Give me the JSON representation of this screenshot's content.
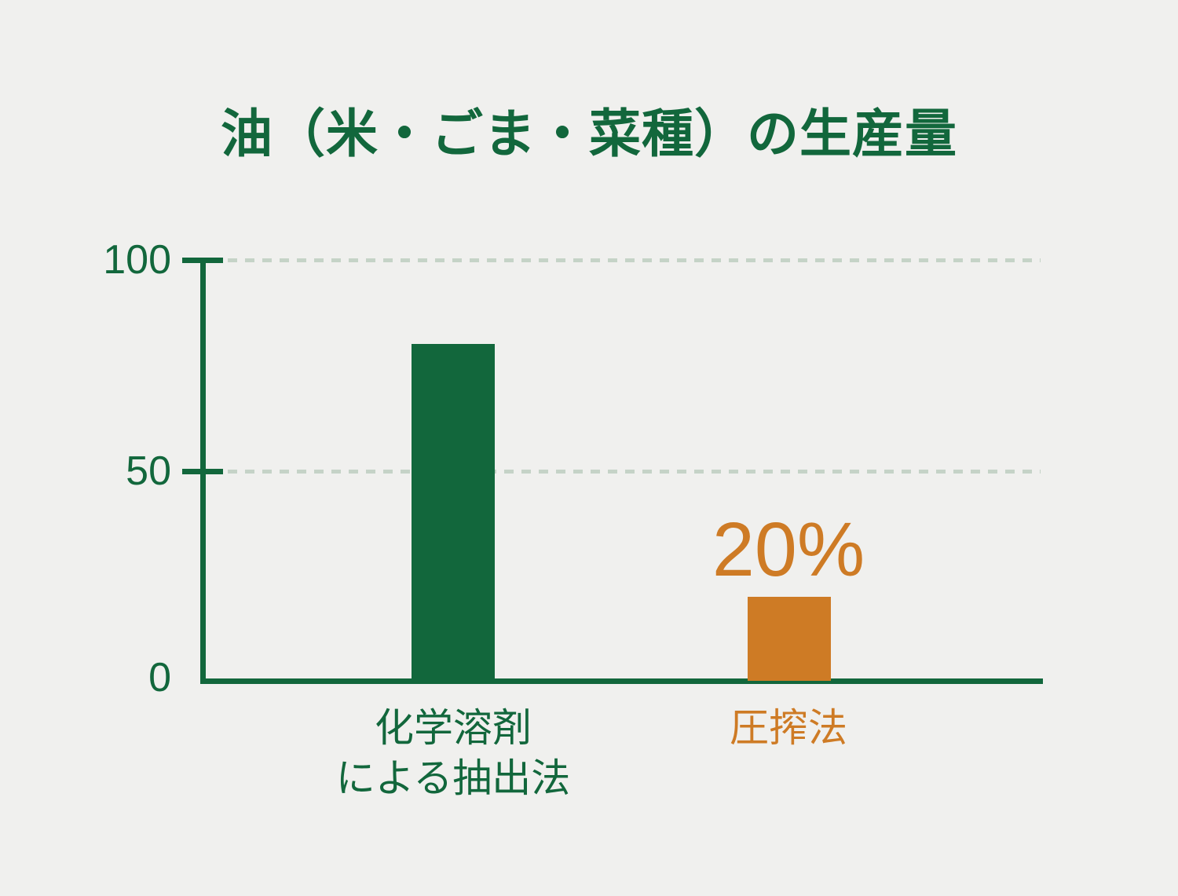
{
  "title": "油（米・ごま・菜種）の生産量",
  "chart_data": {
    "type": "bar",
    "title": "油（米・ごま・菜種）の生産量",
    "categories": [
      "化学溶剤による抽出法",
      "圧搾法"
    ],
    "values": [
      80,
      20
    ],
    "series_colors": [
      "#12673C",
      "#CE7B25"
    ],
    "xlabel": "",
    "ylabel": "",
    "ylim": [
      0,
      100
    ],
    "yticks": [
      0,
      50,
      100
    ],
    "grid": "horizontal dashed lines at 50 and 100",
    "legend_position": "none",
    "annotations": [
      {
        "target": "圧搾法",
        "text": "20%",
        "color": "#CE7B25"
      }
    ]
  },
  "y_axis": {
    "tick_labels": [
      "100",
      "50",
      "0"
    ]
  },
  "bars": [
    {
      "label_lines": [
        "化学溶剤",
        "による抽出法"
      ],
      "value": 80
    },
    {
      "label_lines": [
        "圧搾法"
      ],
      "value": 20,
      "annotation": "20%"
    }
  ],
  "colors": {
    "background": "#F0F0EE",
    "green": "#12673C",
    "orange": "#CE7B25",
    "gridline": "#C5D3C7"
  }
}
